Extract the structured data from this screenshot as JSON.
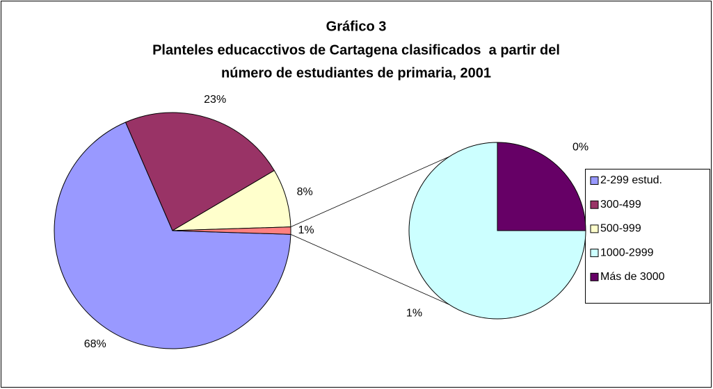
{
  "chart_data": {
    "type": "pie-of-pie",
    "title": [
      "Gráfico 3",
      "Planteles educacctivos de Cartagena clasificados  a partir del",
      "número de estudiantes de primaria, 2001"
    ],
    "categories": [
      "2-299 estud.",
      "300-499",
      "500-999",
      "1000-2999",
      "Más de 3000"
    ],
    "values": [
      68,
      23,
      8,
      0.75,
      0.25
    ],
    "value_labels": [
      "68%",
      "23%",
      "8%",
      "1%",
      "0%"
    ],
    "colors": [
      "#9999ff",
      "#993366",
      "#ffffcc",
      "#ccffff",
      "#660066"
    ],
    "secondary_count": 2,
    "other_label": "1%",
    "other_color": "#ff8080",
    "legend": "right"
  }
}
